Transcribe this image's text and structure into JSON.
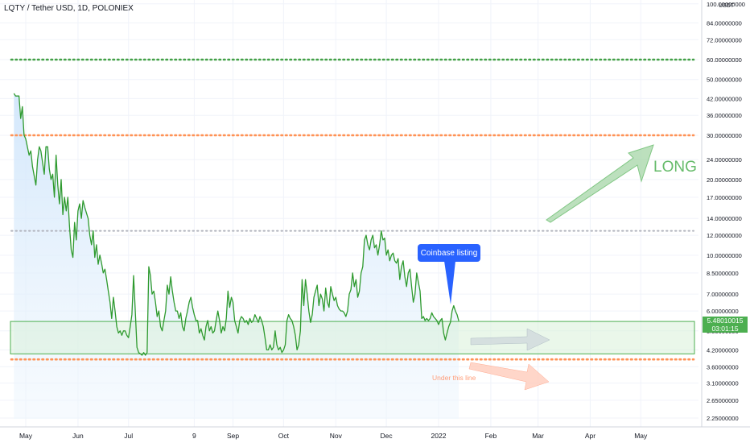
{
  "title": "LQTY / Tether USD, 1D, POLONIEX",
  "axis_unit_label": "USDT",
  "callout_label": "Coinbase listing",
  "long_label": "LONG",
  "under_label": "Under this line",
  "current_price": {
    "value": "5.48010015",
    "countdown": "03:01:15"
  },
  "colors": {
    "line": "#2e9a2e",
    "area_fill": "#e3f0fc",
    "zone_fill": "#d9f0d9",
    "zone_border": "#4caf50",
    "green_dotted": "#43a047",
    "orange_dotted": "#ff9255",
    "gray_dotted": "#b2b5be",
    "arrow_green": "#a5d6a7",
    "arrow_gray": "#cfd8dc",
    "arrow_red": "#ffccbc",
    "callout": "#2962ff"
  },
  "chart_data": {
    "type": "line",
    "title": "LQTY / Tether USD, 1D, POLONIEX",
    "y_scale": "log",
    "x_tick_labels": [
      "May",
      "Jun",
      "Jul",
      "9",
      "Sep",
      "Oct",
      "Nov",
      "Dec",
      "2022",
      "Feb",
      "Mar",
      "Apr",
      "May"
    ],
    "y_tick_labels": [
      "100.00000000",
      "84.00000000",
      "72.00000000",
      "60.00000000",
      "50.00000000",
      "42.00000000",
      "36.00000000",
      "30.00000000",
      "24.00000000",
      "20.00000000",
      "17.00000000",
      "14.00000000",
      "12.00000000",
      "10.00000000",
      "8.50000000",
      "7.00000000",
      "6.00000000",
      "5.00000000",
      "4.20000000",
      "3.60000000",
      "3.10000000",
      "2.65000000",
      "2.25000000"
    ],
    "horizontal_levels": [
      {
        "value": 60,
        "style": "dotted",
        "color": "green"
      },
      {
        "value": 30,
        "style": "dotted",
        "color": "orange"
      },
      {
        "value": 12.5,
        "style": "dotted",
        "color": "gray"
      },
      {
        "value": 3.85,
        "style": "dotted",
        "color": "orange"
      }
    ],
    "zone": {
      "from": 4.05,
      "to": 5.45
    },
    "series": [
      {
        "values": [
          [
            "2021-04-24",
            44
          ],
          [
            "2021-04-25",
            43
          ],
          [
            "2021-04-27",
            43
          ],
          [
            "2021-04-28",
            35
          ],
          [
            "2021-04-29",
            39
          ],
          [
            "2021-04-30",
            30
          ],
          [
            "2021-05-01",
            29
          ],
          [
            "2021-05-03",
            25
          ],
          [
            "2021-05-04",
            26
          ],
          [
            "2021-05-05",
            22.5
          ],
          [
            "2021-05-07",
            19
          ],
          [
            "2021-05-08",
            24
          ],
          [
            "2021-05-09",
            27
          ],
          [
            "2021-05-10",
            26
          ],
          [
            "2021-05-12",
            21
          ],
          [
            "2021-05-13",
            27
          ],
          [
            "2021-05-14",
            27
          ],
          [
            "2021-05-15",
            22
          ],
          [
            "2021-05-16",
            20
          ],
          [
            "2021-05-17",
            21
          ],
          [
            "2021-05-18",
            17
          ],
          [
            "2021-05-19",
            25
          ],
          [
            "2021-05-20",
            19
          ],
          [
            "2021-05-21",
            16
          ],
          [
            "2021-05-22",
            20
          ],
          [
            "2021-05-23",
            14.5
          ],
          [
            "2021-05-24",
            17
          ],
          [
            "2021-05-25",
            15
          ],
          [
            "2021-05-26",
            17
          ],
          [
            "2021-05-27",
            13
          ],
          [
            "2021-05-28",
            10.5
          ],
          [
            "2021-05-29",
            9.8
          ],
          [
            "2021-05-30",
            13.5
          ],
          [
            "2021-05-31",
            11.5
          ],
          [
            "2021-06-01",
            15
          ],
          [
            "2021-06-02",
            16
          ],
          [
            "2021-06-03",
            14
          ],
          [
            "2021-06-04",
            16.5
          ],
          [
            "2021-06-05",
            15.5
          ],
          [
            "2021-06-07",
            14
          ],
          [
            "2021-06-08",
            12
          ],
          [
            "2021-06-09",
            11
          ],
          [
            "2021-06-10",
            12.5
          ],
          [
            "2021-06-11",
            9.8
          ],
          [
            "2021-06-12",
            11
          ],
          [
            "2021-06-13",
            9.2
          ],
          [
            "2021-06-14",
            10
          ],
          [
            "2021-06-15",
            9.3
          ],
          [
            "2021-06-16",
            8.5
          ],
          [
            "2021-06-17",
            8.8
          ],
          [
            "2021-06-18",
            8
          ],
          [
            "2021-06-19",
            7.2
          ],
          [
            "2021-06-20",
            6.5
          ],
          [
            "2021-06-21",
            5.6
          ],
          [
            "2021-06-22",
            6.8
          ],
          [
            "2021-06-23",
            6
          ],
          [
            "2021-06-24",
            5.2
          ],
          [
            "2021-06-25",
            4.9
          ],
          [
            "2021-06-26",
            5
          ],
          [
            "2021-06-27",
            4.8
          ],
          [
            "2021-06-28",
            5
          ],
          [
            "2021-06-29",
            5
          ],
          [
            "2021-06-30",
            4.8
          ],
          [
            "2021-07-01",
            4.7
          ],
          [
            "2021-07-02",
            5.2
          ],
          [
            "2021-07-03",
            5.8
          ],
          [
            "2021-07-04",
            8.3
          ],
          [
            "2021-07-05",
            6
          ],
          [
            "2021-07-06",
            4.3
          ],
          [
            "2021-07-07",
            4.1
          ],
          [
            "2021-07-08",
            4.05
          ],
          [
            "2021-07-09",
            4
          ],
          [
            "2021-07-10",
            4.1
          ],
          [
            "2021-07-11",
            4
          ],
          [
            "2021-07-12",
            4.1
          ],
          [
            "2021-07-13",
            9
          ],
          [
            "2021-07-14",
            8.3
          ],
          [
            "2021-07-15",
            7
          ],
          [
            "2021-07-16",
            7.2
          ],
          [
            "2021-07-17",
            6.5
          ],
          [
            "2021-07-18",
            5.7
          ],
          [
            "2021-07-19",
            6
          ],
          [
            "2021-07-20",
            5.2
          ],
          [
            "2021-07-21",
            5
          ],
          [
            "2021-07-22",
            5.5
          ],
          [
            "2021-07-23",
            6
          ],
          [
            "2021-07-24",
            7.6
          ],
          [
            "2021-07-25",
            7
          ],
          [
            "2021-07-26",
            8.2
          ],
          [
            "2021-07-27",
            7.2
          ],
          [
            "2021-07-28",
            6.5
          ],
          [
            "2021-07-29",
            6
          ],
          [
            "2021-07-30",
            6
          ],
          [
            "2021-07-31",
            5.6
          ],
          [
            "2021-08-01",
            5.9
          ],
          [
            "2021-08-02",
            5.2
          ],
          [
            "2021-08-03",
            5
          ],
          [
            "2021-08-04",
            5.6
          ],
          [
            "2021-08-05",
            6
          ],
          [
            "2021-08-06",
            6.5
          ],
          [
            "2021-08-07",
            6.8
          ],
          [
            "2021-08-08",
            6.2
          ],
          [
            "2021-08-09",
            5.8
          ],
          [
            "2021-08-10",
            5.5
          ],
          [
            "2021-08-11",
            5.5
          ],
          [
            "2021-08-12",
            4.9
          ],
          [
            "2021-08-13",
            5.1
          ],
          [
            "2021-08-14",
            4.8
          ],
          [
            "2021-08-15",
            4.6
          ],
          [
            "2021-08-16",
            5.2
          ],
          [
            "2021-08-17",
            5.5
          ],
          [
            "2021-08-18",
            5
          ],
          [
            "2021-08-19",
            5.2
          ],
          [
            "2021-08-20",
            4.9
          ],
          [
            "2021-08-21",
            5
          ],
          [
            "2021-08-22",
            5.5
          ],
          [
            "2021-08-23",
            6
          ],
          [
            "2021-08-24",
            5.5
          ],
          [
            "2021-08-25",
            4.9
          ],
          [
            "2021-08-26",
            5.2
          ],
          [
            "2021-08-27",
            5
          ],
          [
            "2021-08-28",
            5.6
          ],
          [
            "2021-08-29",
            7.2
          ],
          [
            "2021-08-30",
            6.2
          ],
          [
            "2021-08-31",
            6.8
          ],
          [
            "2021-09-01",
            6.5
          ],
          [
            "2021-09-02",
            5.5
          ],
          [
            "2021-09-03",
            5.2
          ],
          [
            "2021-09-04",
            4.9
          ],
          [
            "2021-09-05",
            5.5
          ],
          [
            "2021-09-06",
            5.7
          ],
          [
            "2021-09-07",
            5.6
          ],
          [
            "2021-09-08",
            5.4
          ],
          [
            "2021-09-09",
            5.5
          ],
          [
            "2021-09-10",
            5.3
          ],
          [
            "2021-09-11",
            5.6
          ],
          [
            "2021-09-12",
            5.4
          ],
          [
            "2021-09-13",
            5.5
          ],
          [
            "2021-09-14",
            5.8
          ],
          [
            "2021-09-15",
            5.6
          ],
          [
            "2021-09-16",
            5.4
          ],
          [
            "2021-09-17",
            5.7
          ],
          [
            "2021-09-18",
            5.5
          ],
          [
            "2021-09-19",
            5.2
          ],
          [
            "2021-09-20",
            4.7
          ],
          [
            "2021-09-21",
            4.2
          ],
          [
            "2021-09-22",
            4.2
          ],
          [
            "2021-09-23",
            4.4
          ],
          [
            "2021-09-24",
            4.2
          ],
          [
            "2021-09-25",
            4.3
          ],
          [
            "2021-09-26",
            5
          ],
          [
            "2021-09-27",
            4.4
          ],
          [
            "2021-09-28",
            4.2
          ],
          [
            "2021-09-29",
            4.3
          ],
          [
            "2021-09-30",
            4.1
          ],
          [
            "2021-10-01",
            4.2
          ],
          [
            "2021-10-02",
            4.4
          ],
          [
            "2021-10-03",
            5.5
          ],
          [
            "2021-10-04",
            5.8
          ],
          [
            "2021-10-05",
            5.6
          ],
          [
            "2021-10-06",
            5.5
          ],
          [
            "2021-10-07",
            5.2
          ],
          [
            "2021-10-08",
            4.8
          ],
          [
            "2021-10-09",
            4.2
          ],
          [
            "2021-10-10",
            4.4
          ],
          [
            "2021-10-11",
            5
          ],
          [
            "2021-10-12",
            8
          ],
          [
            "2021-10-13",
            6.3
          ],
          [
            "2021-10-14",
            8
          ],
          [
            "2021-10-15",
            7
          ],
          [
            "2021-10-16",
            6
          ],
          [
            "2021-10-17",
            5.4
          ],
          [
            "2021-10-18",
            5.8
          ],
          [
            "2021-10-19",
            6.8
          ],
          [
            "2021-10-20",
            7.2
          ],
          [
            "2021-10-21",
            7.6
          ],
          [
            "2021-10-22",
            6.3
          ],
          [
            "2021-10-23",
            7
          ],
          [
            "2021-10-24",
            6.7
          ],
          [
            "2021-10-25",
            6
          ],
          [
            "2021-10-26",
            7.4
          ],
          [
            "2021-10-27",
            6.5
          ],
          [
            "2021-10-28",
            6.2
          ],
          [
            "2021-10-29",
            7.5
          ],
          [
            "2021-10-30",
            7
          ],
          [
            "2021-10-31",
            6.6
          ],
          [
            "2021-11-01",
            6.8
          ],
          [
            "2021-11-02",
            6.3
          ],
          [
            "2021-11-03",
            6.1
          ],
          [
            "2021-11-04",
            6
          ],
          [
            "2021-11-05",
            6
          ],
          [
            "2021-11-06",
            5.9
          ],
          [
            "2021-11-07",
            5.7
          ],
          [
            "2021-11-08",
            6
          ],
          [
            "2021-11-09",
            7
          ],
          [
            "2021-11-10",
            7.3
          ],
          [
            "2021-11-11",
            8.5
          ],
          [
            "2021-11-12",
            7.5
          ],
          [
            "2021-11-13",
            8
          ],
          [
            "2021-11-14",
            6.8
          ],
          [
            "2021-11-15",
            7.2
          ],
          [
            "2021-11-16",
            8.5
          ],
          [
            "2021-11-17",
            9
          ],
          [
            "2021-11-18",
            11.5
          ],
          [
            "2021-11-19",
            12
          ],
          [
            "2021-11-20",
            11
          ],
          [
            "2021-11-21",
            10.5
          ],
          [
            "2021-11-22",
            11.5
          ],
          [
            "2021-11-23",
            12
          ],
          [
            "2021-11-24",
            10.7
          ],
          [
            "2021-11-25",
            11
          ],
          [
            "2021-11-26",
            10
          ],
          [
            "2021-11-27",
            11
          ],
          [
            "2021-11-28",
            12.5
          ],
          [
            "2021-11-29",
            11.5
          ],
          [
            "2021-11-30",
            11.7
          ],
          [
            "2021-12-01",
            10
          ],
          [
            "2021-12-02",
            10.5
          ],
          [
            "2021-12-03",
            9.5
          ],
          [
            "2021-12-04",
            10
          ],
          [
            "2021-12-05",
            10.2
          ],
          [
            "2021-12-06",
            9.5
          ],
          [
            "2021-12-07",
            9.3
          ],
          [
            "2021-12-08",
            9.7
          ],
          [
            "2021-12-09",
            8
          ],
          [
            "2021-12-10",
            9
          ],
          [
            "2021-12-11",
            9.5
          ],
          [
            "2021-12-12",
            8.2
          ],
          [
            "2021-12-13",
            7.5
          ],
          [
            "2021-12-14",
            8.5
          ],
          [
            "2021-12-15",
            8.8
          ],
          [
            "2021-12-16",
            7.5
          ],
          [
            "2021-12-17",
            6.5
          ],
          [
            "2021-12-18",
            7
          ],
          [
            "2021-12-19",
            8.5
          ],
          [
            "2021-12-20",
            7.8
          ],
          [
            "2021-12-21",
            7.2
          ],
          [
            "2021-12-22",
            5.6
          ],
          [
            "2021-12-23",
            5.7
          ],
          [
            "2021-12-24",
            5.5
          ],
          [
            "2021-12-25",
            5.6
          ],
          [
            "2021-12-26",
            5.5
          ],
          [
            "2021-12-27",
            5.6
          ],
          [
            "2021-12-28",
            5.9
          ],
          [
            "2021-12-29",
            5.7
          ],
          [
            "2021-12-30",
            5.6
          ],
          [
            "2021-12-31",
            5.5
          ],
          [
            "2022-01-01",
            5.3
          ],
          [
            "2022-01-02",
            5.5
          ],
          [
            "2022-01-03",
            5.6
          ],
          [
            "2022-01-04",
            4.9
          ],
          [
            "2022-01-05",
            4.6
          ],
          [
            "2022-01-06",
            4.9
          ],
          [
            "2022-01-07",
            5.2
          ],
          [
            "2022-01-08",
            5.4
          ],
          [
            "2022-01-09",
            6
          ],
          [
            "2022-01-10",
            6.3
          ],
          [
            "2022-01-11",
            6
          ],
          [
            "2022-01-12",
            5.8
          ],
          [
            "2022-01-13",
            5.48
          ]
        ]
      }
    ],
    "annotations": [
      {
        "text": "Coinbase listing",
        "type": "callout",
        "date": "2022-01-11"
      },
      {
        "text": "LONG",
        "type": "label"
      },
      {
        "text": "Under this line",
        "type": "label"
      }
    ]
  }
}
